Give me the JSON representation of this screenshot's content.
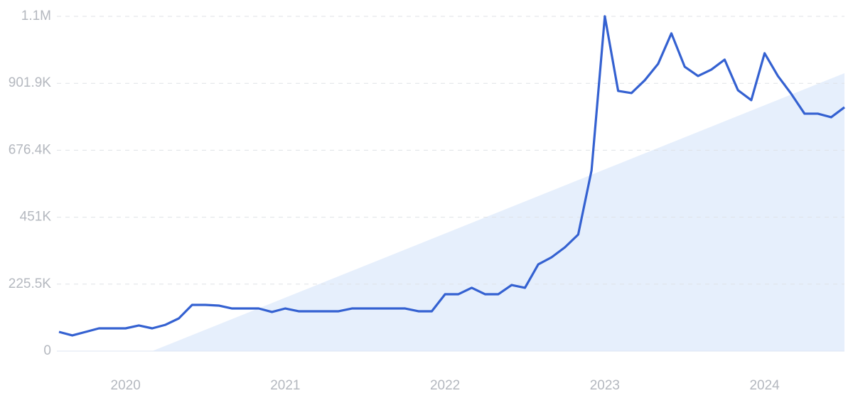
{
  "chart_data": {
    "type": "line",
    "categories": [
      null,
      null,
      null,
      null,
      null,
      "2020",
      null,
      null,
      null,
      null,
      null,
      null,
      null,
      null,
      null,
      null,
      null,
      "2021",
      null,
      null,
      null,
      null,
      null,
      null,
      null,
      null,
      null,
      null,
      null,
      "2022",
      null,
      null,
      null,
      null,
      null,
      null,
      null,
      null,
      null,
      null,
      null,
      "2023",
      null,
      null,
      null,
      null,
      null,
      null,
      null,
      null,
      null,
      null,
      null,
      "2024",
      null,
      null,
      null,
      null,
      null,
      null
    ],
    "series": [
      {
        "color": "#3461d1",
        "values": [
          64600,
          52700,
          64600,
          76600,
          76600,
          76600,
          86200,
          76600,
          88600,
          110100,
          155600,
          155600,
          153200,
          143600,
          143600,
          143600,
          131700,
          143600,
          134100,
          134100,
          134100,
          134100,
          143600,
          143600,
          143600,
          143600,
          143600,
          134100,
          134100,
          191500,
          191500,
          213100,
          191500,
          191500,
          222600,
          213100,
          292100,
          316000,
          349500,
          392600,
          608100,
          1127600,
          876200,
          869000,
          912100,
          967200,
          1070100,
          957600,
          926500,
          948000,
          981500,
          878600,
          845100,
          1003100,
          926500,
          866600,
          799600,
          799600,
          787600,
          821100
        ]
      }
    ],
    "trend": {
      "color": "#e6effc",
      "values": [
        null,
        null,
        null,
        null,
        null,
        null,
        null,
        0,
        null,
        null,
        null,
        null,
        null,
        null,
        null,
        null,
        null,
        null,
        null,
        null,
        null,
        null,
        null,
        null,
        null,
        null,
        null,
        null,
        null,
        null,
        null,
        null,
        null,
        null,
        null,
        null,
        null,
        null,
        null,
        null,
        null,
        null,
        null,
        null,
        null,
        null,
        null,
        null,
        null,
        null,
        null,
        null,
        null,
        null,
        null,
        null,
        null,
        null,
        null,
        936000
      ]
    },
    "ylim": [
      0,
      1127400
    ],
    "yticks": [
      0,
      {
        "value": 225500,
        "label": "225.5K"
      },
      {
        "value": 451000,
        "label": "451K"
      },
      {
        "value": 676400,
        "label": "676.4K"
      },
      {
        "value": 901900,
        "label": "901.9K"
      },
      {
        "value": 1127400,
        "label": "1.1M"
      }
    ],
    "grid": true
  }
}
